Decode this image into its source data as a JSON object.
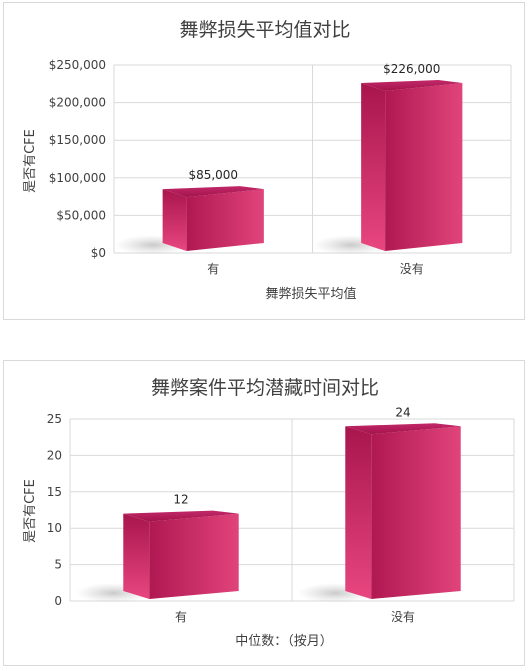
{
  "chart_data": [
    {
      "type": "bar",
      "title": "舞弊损失平均值对比",
      "xlabel": "舞弊损失平均值",
      "ylabel": "是否有CFE",
      "categories": [
        "有",
        "没有"
      ],
      "values": [
        85000,
        226000
      ],
      "data_labels": [
        "$85,000",
        "$226,000"
      ],
      "ylim": [
        0,
        250000
      ],
      "yticks": [
        0,
        50000,
        100000,
        150000,
        200000,
        250000
      ],
      "ytick_labels": [
        "$0",
        "$50,000",
        "$100,000",
        "$150,000",
        "$200,000",
        "$250,000"
      ],
      "grid": true,
      "bar_style": "3d",
      "bar_color": "#c2185b"
    },
    {
      "type": "bar",
      "title": "舞弊案件平均潜藏时间对比",
      "xlabel": "中位数：（按月）",
      "ylabel": "是否有CFE",
      "categories": [
        "有",
        "没有"
      ],
      "values": [
        12,
        24
      ],
      "data_labels": [
        "12",
        "24"
      ],
      "ylim": [
        0,
        25
      ],
      "yticks": [
        0,
        5,
        10,
        15,
        20,
        25
      ],
      "ytick_labels": [
        "0",
        "5",
        "10",
        "15",
        "20",
        "25"
      ],
      "grid": true,
      "bar_style": "3d",
      "bar_color": "#c2185b"
    }
  ]
}
